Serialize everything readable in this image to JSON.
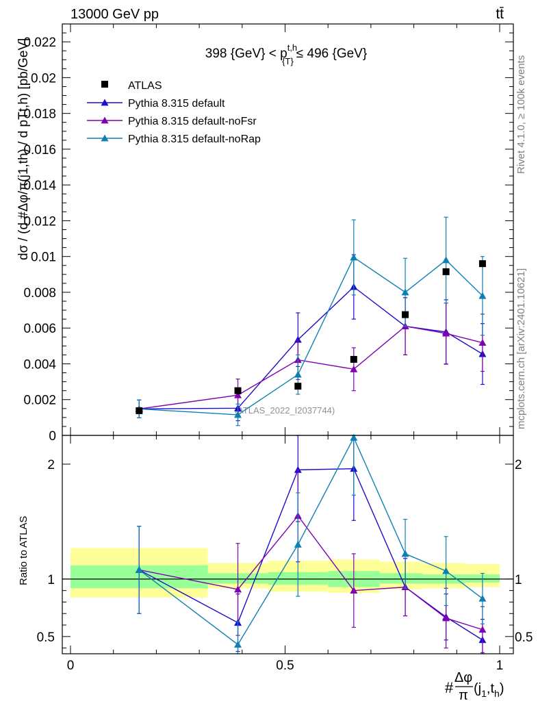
{
  "header": {
    "left_title": "13000 GeV pp",
    "right_title": "tt̄"
  },
  "side_labels": {
    "rivet": "Rivet 4.1.0, ≥ 100k events",
    "mcplots": "mcplots.cern.ch [arXiv:2401.10621]"
  },
  "colors": {
    "atlas": "#000000",
    "default": "#1a0dcc",
    "noFsr": "#8000b3",
    "noRap": "#0d80b3",
    "band_inner": "#99ff99",
    "band_outer": "#ffff99"
  },
  "chart_data": [
    {
      "type": "scatter",
      "panel": "main",
      "title": "398 {GeV} < p_{T}^{t,h} ≤ 496 {GeV}",
      "title_parts": {
        "lhs": "398 {GeV} < p",
        "sup": "t,h",
        "sub": "{T}",
        "rhs": "≤ 496 {GeV}"
      },
      "ylabel": "dσ / (d #Δφ/π(j_1,t_h) / d p_{T}^{t,h}) [pb/GeV]",
      "ylabel_plain": "dσ / (d #Δφ/π(j1,th) / d pTt,h) [pb/GeV]",
      "watermark": "(ATLAS_2022_I2037744)",
      "xlim": [
        0,
        1
      ],
      "ylim": [
        0,
        0.023
      ],
      "yticks": [
        0,
        0.002,
        0.004,
        0.006,
        0.008,
        0.01,
        0.012,
        0.014,
        0.016,
        0.018,
        0.02,
        0.022
      ],
      "ytick_labels": [
        "0",
        "0.002",
        "0.004",
        "0.006",
        "0.008",
        "0.01",
        "0.012",
        "0.014",
        "0.016",
        "0.018",
        "0.02",
        "0.022"
      ],
      "bin_edges": [
        0,
        0.32,
        0.46,
        0.6,
        0.72,
        0.82,
        0.92,
        1.0
      ],
      "x": [
        0.16,
        0.39,
        0.53,
        0.66,
        0.78,
        0.875,
        0.96
      ],
      "legend": [
        "ATLAS",
        "Pythia 8.315 default",
        "Pythia 8.315 default-noFsr",
        "Pythia 8.315 default-noRap"
      ],
      "series": [
        {
          "name": "ATLAS",
          "marker": "square",
          "values": [
            0.00138,
            0.0025,
            0.00275,
            0.00425,
            0.00675,
            0.00915,
            0.0096
          ]
        },
        {
          "name": "Pythia 8.315 default",
          "marker": "triangle",
          "values": [
            0.00148,
            0.00152,
            0.00535,
            0.0083,
            0.0061,
            0.00578,
            0.00455
          ],
          "errors": [
            0.0005,
            0.0007,
            0.0015,
            0.0018,
            0.0016,
            0.0018,
            0.0017
          ]
        },
        {
          "name": "Pythia 8.315 default-noFsr",
          "marker": "triangle",
          "values": [
            0.00148,
            0.00225,
            0.00422,
            0.0037,
            0.0061,
            0.0057,
            0.00518
          ],
          "errors": [
            0.0005,
            0.0009,
            0.0011,
            0.0012,
            0.0016,
            0.0017,
            0.0016
          ]
        },
        {
          "name": "Pythia 8.315 default-noRap",
          "marker": "triangle",
          "values": [
            0.00148,
            0.00115,
            0.0034,
            0.00995,
            0.008,
            0.0098,
            0.0078
          ],
          "errors": [
            0.0005,
            0.0006,
            0.0011,
            0.0021,
            0.0019,
            0.0024,
            0.0022
          ]
        }
      ]
    },
    {
      "type": "line",
      "panel": "ratio",
      "ylabel": "Ratio to ATLAS",
      "xlabel": "#Δφ/π(j_1,t_h)",
      "xlabel_parts": {
        "hash": "#",
        "num": "Δφ",
        "den": "π",
        "paren": "(j",
        "sub1": "1",
        "mid": ",t",
        "sub2": "h",
        "close": ")"
      },
      "xlim": [
        0,
        1
      ],
      "ylim": [
        0.35,
        2.25
      ],
      "xticks": [
        0,
        0.5,
        1
      ],
      "xtick_labels": [
        "0",
        "0.5",
        "1"
      ],
      "yticks": [
        0.5,
        1,
        2
      ],
      "ytick_labels": [
        "0.5",
        "1",
        "2"
      ],
      "reference_line": 1,
      "bands": {
        "bin_edges": [
          0,
          0.32,
          0.46,
          0.6,
          0.72,
          0.82,
          0.92,
          1.0
        ],
        "inner": [
          [
            0.92,
            1.12
          ],
          [
            0.96,
            1.05
          ],
          [
            0.95,
            1.06
          ],
          [
            0.93,
            1.07
          ],
          [
            0.96,
            1.05
          ],
          [
            0.96,
            1.04
          ],
          [
            0.97,
            1.04
          ]
        ],
        "outer": [
          [
            0.84,
            1.27
          ],
          [
            0.92,
            1.14
          ],
          [
            0.89,
            1.16
          ],
          [
            0.88,
            1.17
          ],
          [
            0.91,
            1.15
          ],
          [
            0.92,
            1.14
          ],
          [
            0.93,
            1.13
          ]
        ]
      },
      "x": [
        0.16,
        0.39,
        0.53,
        0.66,
        0.78,
        0.875,
        0.96
      ],
      "series": [
        {
          "name": "Pythia 8.315 default",
          "values": [
            1.08,
            0.62,
            1.95,
            1.96,
            0.93,
            0.67,
            0.47
          ],
          "errors": [
            0.38,
            0.25,
            0.45,
            0.45,
            0.25,
            0.2,
            0.18
          ]
        },
        {
          "name": "Pythia 8.315 default-noFsr",
          "values": [
            1.08,
            0.91,
            1.55,
            0.9,
            0.93,
            0.66,
            0.56
          ],
          "errors": [
            0.38,
            0.4,
            0.4,
            0.32,
            0.25,
            0.26,
            0.2
          ]
        },
        {
          "name": "Pythia 8.315 default-noRap",
          "values": [
            1.08,
            0.43,
            1.3,
            2.23,
            1.22,
            1.07,
            0.83
          ],
          "errors": [
            0.38,
            0.2,
            0.45,
            0.5,
            0.3,
            0.3,
            0.22
          ]
        }
      ]
    }
  ]
}
